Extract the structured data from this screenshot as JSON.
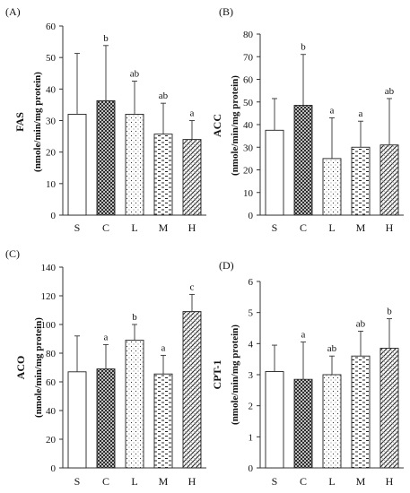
{
  "chart_data": [
    {
      "type": "bar",
      "panel_label": "(A)",
      "categories": [
        "S",
        "C",
        "L",
        "M",
        "H"
      ],
      "values": [
        32,
        36.3,
        32,
        25.7,
        24
      ],
      "errors": [
        19.3,
        17.5,
        10.5,
        9.8,
        6
      ],
      "significance": [
        "",
        "b",
        "ab",
        "ab",
        "a"
      ],
      "ylabel": "FAS",
      "ylabel_unit": "(nmole/min/mg protein)",
      "ylim": [
        0,
        60
      ],
      "yticks": [
        0,
        10,
        20,
        30,
        40,
        50,
        60
      ],
      "patterns": [
        "plain",
        "crosshatch",
        "dots",
        "dashes",
        "diagonal"
      ]
    },
    {
      "type": "bar",
      "panel_label": "(B)",
      "categories": [
        "S",
        "C",
        "L",
        "M",
        "H"
      ],
      "values": [
        37.5,
        48.5,
        25,
        30,
        31
      ],
      "errors": [
        14,
        22.5,
        18,
        11.5,
        20.5
      ],
      "significance": [
        "",
        "b",
        "a",
        "a",
        "ab"
      ],
      "ylabel": "ACC",
      "ylabel_unit": "(nmole/min/mg protein)",
      "ylim": [
        0,
        80
      ],
      "yticks": [
        0,
        10,
        20,
        30,
        40,
        50,
        60,
        70,
        80
      ],
      "patterns": [
        "plain",
        "crosshatch",
        "dots",
        "dashes",
        "diagonal"
      ]
    },
    {
      "type": "bar",
      "panel_label": "(C)",
      "categories": [
        "S",
        "C",
        "L",
        "M",
        "H"
      ],
      "values": [
        67,
        69,
        89,
        65.5,
        109
      ],
      "errors": [
        25,
        17,
        11,
        13,
        12
      ],
      "significance": [
        "",
        "a",
        "b",
        "a",
        "c"
      ],
      "ylabel": "ACO",
      "ylabel_unit": "(nmole/min/mg protein)",
      "ylim": [
        0,
        140
      ],
      "yticks": [
        0,
        20,
        40,
        60,
        80,
        100,
        120,
        140
      ],
      "patterns": [
        "plain",
        "crosshatch",
        "dots",
        "dashes",
        "diagonal"
      ]
    },
    {
      "type": "bar",
      "panel_label": "(D)",
      "categories": [
        "S",
        "C",
        "L",
        "M",
        "H"
      ],
      "values": [
        3.1,
        2.85,
        3.0,
        3.6,
        3.85
      ],
      "errors": [
        0.85,
        1.2,
        0.6,
        0.8,
        0.95
      ],
      "significance": [
        "",
        "a",
        "ab",
        "ab",
        "b"
      ],
      "ylabel": "CPT-1",
      "ylabel_unit": "(nmole/min/mg protein)",
      "ylim": [
        0,
        6
      ],
      "yticks": [
        0,
        1,
        2,
        3,
        4,
        5,
        6
      ],
      "patterns": [
        "plain",
        "crosshatch",
        "dots",
        "dashes",
        "diagonal"
      ]
    }
  ]
}
